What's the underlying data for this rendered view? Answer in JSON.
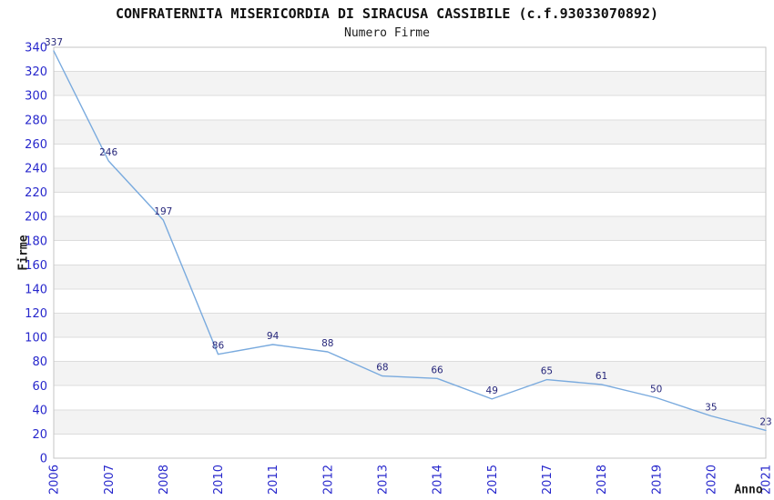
{
  "chart_data": {
    "type": "line",
    "title": "CONFRATERNITA MISERICORDIA DI SIRACUSA CASSIBILE (c.f.93033070892)",
    "subtitle": "Numero Firme",
    "xlabel": "Anno",
    "ylabel": "Firme",
    "categories": [
      "2006",
      "2007",
      "2008",
      "2010",
      "2011",
      "2012",
      "2013",
      "2014",
      "2015",
      "2017",
      "2018",
      "2019",
      "2020",
      "2021"
    ],
    "values": [
      337,
      246,
      197,
      86,
      94,
      88,
      68,
      66,
      49,
      65,
      61,
      50,
      35,
      23
    ],
    "point_labels": [
      "337",
      "246",
      "197",
      "86",
      "94",
      "88",
      "68",
      "66",
      "49",
      "65",
      "61",
      "50",
      "35",
      "23"
    ],
    "ylim": [
      0,
      340
    ],
    "ytick_step": 20,
    "ytick_labels": [
      "0",
      "20",
      "40",
      "60",
      "80",
      "100",
      "120",
      "140",
      "160",
      "180",
      "200",
      "220",
      "240",
      "260",
      "280",
      "300",
      "320",
      "340"
    ],
    "grid": "horizontal-lines-with-alternating-bands",
    "legend": "none",
    "colors": {
      "line": "#79aade",
      "tick_label": "#2727cc",
      "point_label": "#26267a",
      "band": "#f3f3f3",
      "gridline": "#dcdcdc",
      "frame": "#c6c6c6",
      "title_text": "#111111",
      "axis_label_text": "#1c1c1c",
      "background": "#ffffff"
    }
  }
}
